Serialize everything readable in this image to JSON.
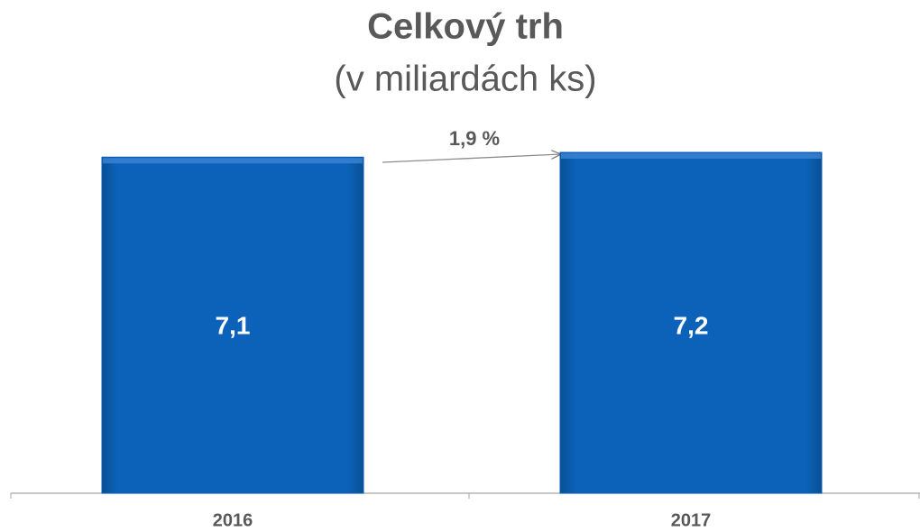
{
  "chart_data": {
    "type": "bar",
    "title": "Celkový trh",
    "subtitle": "(v miliardách ks)",
    "categories": [
      "2016",
      "2017"
    ],
    "values": [
      7.1,
      7.2
    ],
    "value_labels": [
      "7,1",
      "7,2"
    ],
    "color": "#0b5fb4",
    "annotation": "1,9 %",
    "ylim": [
      0,
      7.2
    ]
  }
}
